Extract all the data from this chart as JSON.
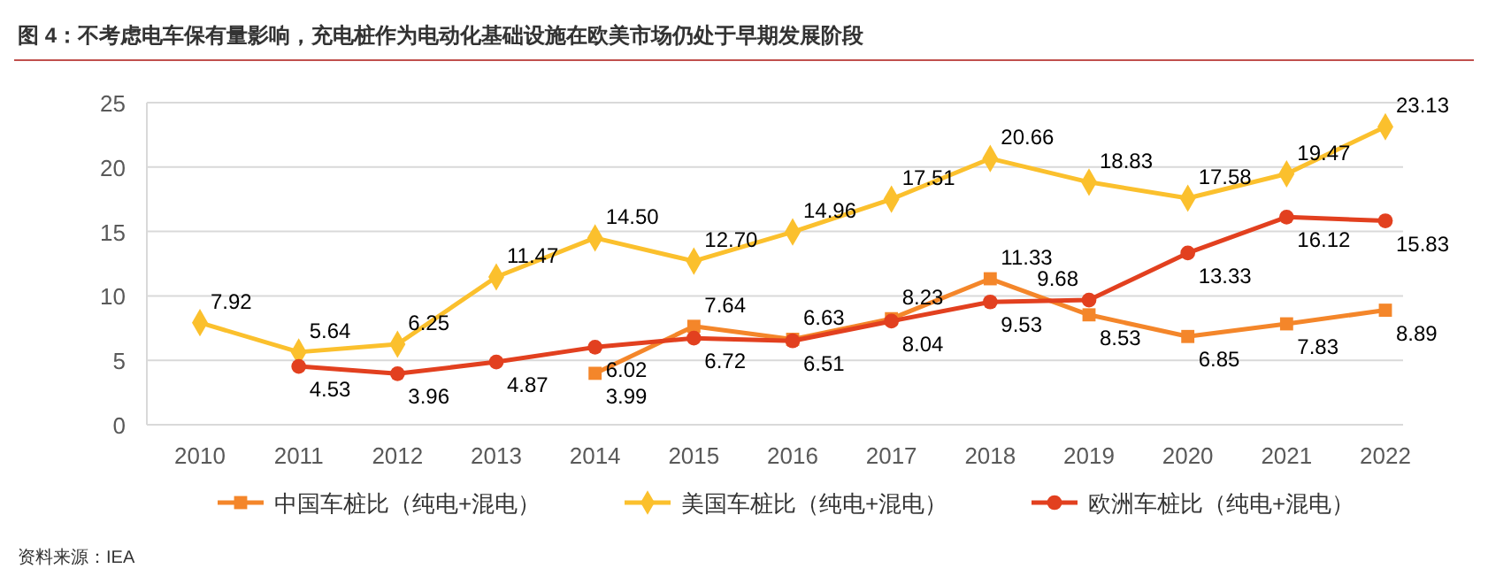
{
  "chart_data": {
    "type": "line",
    "title": "图 4：不考虑电车保有量影响，充电桩作为电动化基础设施在欧美市场仍处于早期发展阶段",
    "categories": [
      "2010",
      "2011",
      "2012",
      "2013",
      "2014",
      "2015",
      "2016",
      "2017",
      "2018",
      "2019",
      "2020",
      "2021",
      "2022"
    ],
    "series": [
      {
        "name": "中国车桩比（纯电+混电）",
        "color": "#f4862a",
        "marker": "square",
        "values": [
          null,
          null,
          null,
          null,
          3.99,
          7.64,
          6.63,
          8.23,
          11.33,
          8.53,
          6.85,
          7.83,
          8.89
        ],
        "value_labels": [
          null,
          null,
          null,
          null,
          "3.99",
          "7.64",
          "6.63",
          "8.23",
          "11.33",
          "8.53",
          "6.85",
          "7.83",
          "8.89"
        ]
      },
      {
        "name": "美国车桩比（纯电+混电）",
        "color": "#fbc02d",
        "marker": "diamond",
        "values": [
          7.92,
          5.64,
          6.25,
          11.47,
          14.5,
          12.7,
          14.96,
          17.51,
          20.66,
          18.83,
          17.58,
          19.47,
          23.13
        ],
        "value_labels": [
          "7.92",
          "5.64",
          "6.25",
          "11.47",
          "14.50",
          "12.70",
          "14.96",
          "17.51",
          "20.66",
          "18.83",
          "17.58",
          "19.47",
          "23.13"
        ]
      },
      {
        "name": "欧洲车桩比（纯电+混电）",
        "color": "#e2401f",
        "marker": "circle",
        "values": [
          null,
          4.53,
          3.96,
          4.87,
          6.02,
          6.72,
          6.51,
          8.04,
          9.53,
          9.68,
          13.33,
          16.12,
          15.83
        ],
        "value_labels": [
          null,
          "4.53",
          "3.96",
          "4.87",
          "6.02",
          "6.72",
          "6.51",
          "8.04",
          "9.53",
          "9.68",
          "13.33",
          "16.12",
          "15.83"
        ]
      }
    ],
    "ylim": [
      0,
      25
    ],
    "yticks": [
      0,
      5,
      10,
      15,
      20,
      25
    ],
    "grid": "y",
    "legend": "bottom",
    "annotations": [
      "资料来源：IEA"
    ]
  }
}
